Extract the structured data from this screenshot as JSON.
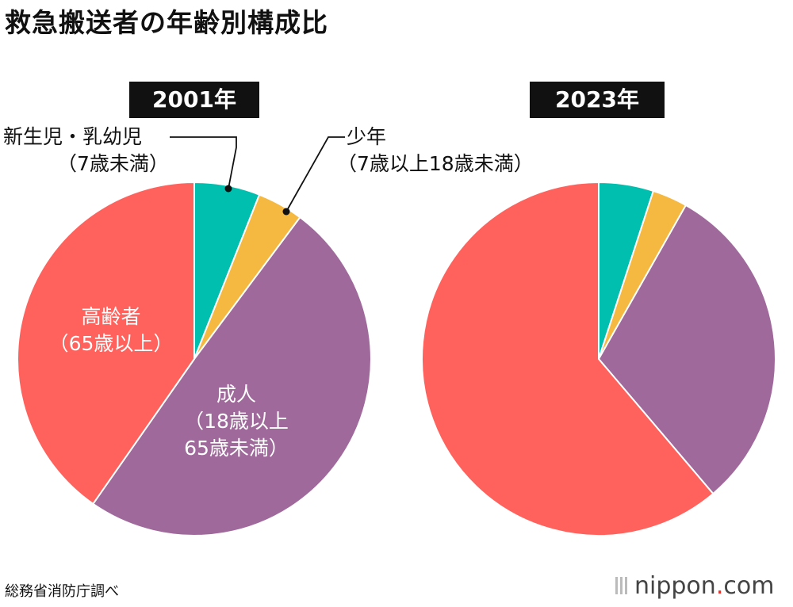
{
  "title": "救急搬送者の年齢別構成比",
  "source": "総務省消防庁調べ",
  "brand": {
    "name": "nippon",
    "dot": ".",
    "domain": "com"
  },
  "colors": {
    "infant": "#00bfae",
    "youth": "#f5b942",
    "adult": "#a0699b",
    "elderly": "#ff625c"
  },
  "chart_data": [
    {
      "type": "pie",
      "year_label": "2001年",
      "categories": [
        "新生児・乳幼児（7歳未満）",
        "少年（7歳以上18歳未満）",
        "成人（18歳以上65歳未満）",
        "高齢者（65歳以上）"
      ],
      "values": [
        6.0,
        4.2,
        49.5,
        40.3
      ]
    },
    {
      "type": "pie",
      "year_label": "2023年",
      "categories": [
        "新生児・乳幼児（7歳未満）",
        "少年（7歳以上18歳未満）",
        "成人（18歳以上65歳未満）",
        "高齢者（65歳以上）"
      ],
      "values": [
        5.0,
        3.2,
        30.6,
        61.2
      ]
    }
  ],
  "labels": {
    "infant_line1": "新生児・乳幼児",
    "infant_line2": "（7歳未満）",
    "youth_line1": "少年",
    "youth_line2": "（7歳以上18歳未満）",
    "elderly_line1": "高齢者",
    "elderly_line2": "（65歳以上）",
    "adult_line1": "成人",
    "adult_line2": "（18歳以上",
    "adult_line3": "65歳未満）"
  }
}
